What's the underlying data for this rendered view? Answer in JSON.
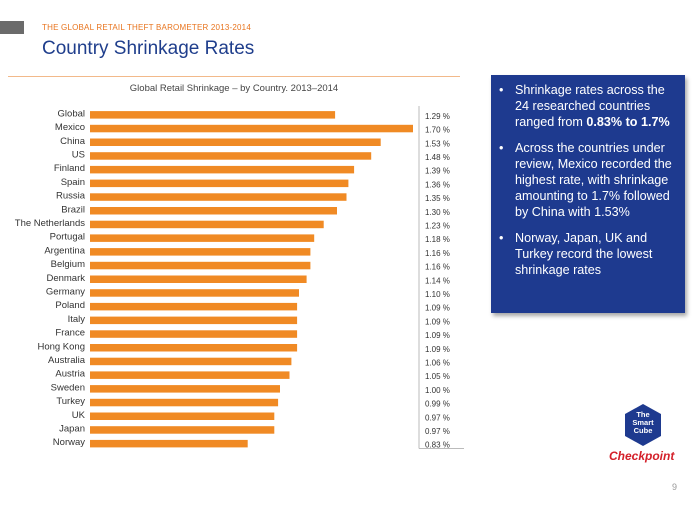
{
  "header": {
    "kicker": "THE GLOBAL RETAIL THEFT BAROMETER 2013-2014",
    "title": "Country Shrinkage Rates"
  },
  "chart_data": {
    "type": "bar",
    "orientation": "horizontal",
    "title": "Global  Retail Shrinkage  – by Country.  2013–2014",
    "categories": [
      "Global",
      "Mexico",
      "China",
      "US",
      "Finland",
      "Spain",
      "Russia",
      "Brazil",
      "The Netherlands",
      "Portugal",
      "Argentina",
      "Belgium",
      "Denmark",
      "Germany",
      "Poland",
      "Italy",
      "France",
      "Hong Kong",
      "Australia",
      "Austria",
      "Sweden",
      "Turkey",
      "UK",
      "Japan",
      "Norway"
    ],
    "values": [
      1.29,
      1.7,
      1.53,
      1.48,
      1.39,
      1.36,
      1.35,
      1.3,
      1.23,
      1.18,
      1.16,
      1.16,
      1.14,
      1.1,
      1.09,
      1.09,
      1.09,
      1.09,
      1.06,
      1.05,
      1.0,
      0.99,
      0.97,
      0.97,
      0.83
    ],
    "value_labels": [
      "1.29 %",
      "1.70 %",
      "1.53 %",
      "1.48 %",
      "1.39 %",
      "1.36 %",
      "1.35 %",
      "1.30 %",
      "1.23 %",
      "1.18 %",
      "1.16 %",
      "1.16 %",
      "1.14 %",
      "1.10 %",
      "1.09 %",
      "1.09 %",
      "1.09 %",
      "1.09 %",
      "1.06 %",
      "1.05 %",
      "1.00 %",
      "0.99 %",
      "0.97 %",
      "0.97 %",
      "0.83 %"
    ],
    "bar_color": "#f08a24",
    "grid": false
  },
  "panel": {
    "bullet_glyph": "•",
    "bullets": [
      {
        "text": "Shrinkage rates across the 24 researched countries ranged from ",
        "bold": "0.83% to 1.7%",
        "tail": ""
      },
      {
        "text": "Across the countries under review, Mexico recorded the highest rate, with shrinkage amounting to 1.7% followed by China with 1.53%",
        "bold": "",
        "tail": ""
      },
      {
        "text": "Norway, Japan, UK and Turkey record the lowest shrinkage rates",
        "bold": "",
        "tail": ""
      }
    ],
    "background": "#1e3a8f"
  },
  "logos": {
    "cube_line1": "The",
    "cube_line2": "Smart",
    "cube_line3": "Cube",
    "checkpoint": "Checkpoint"
  },
  "page_number": "9"
}
